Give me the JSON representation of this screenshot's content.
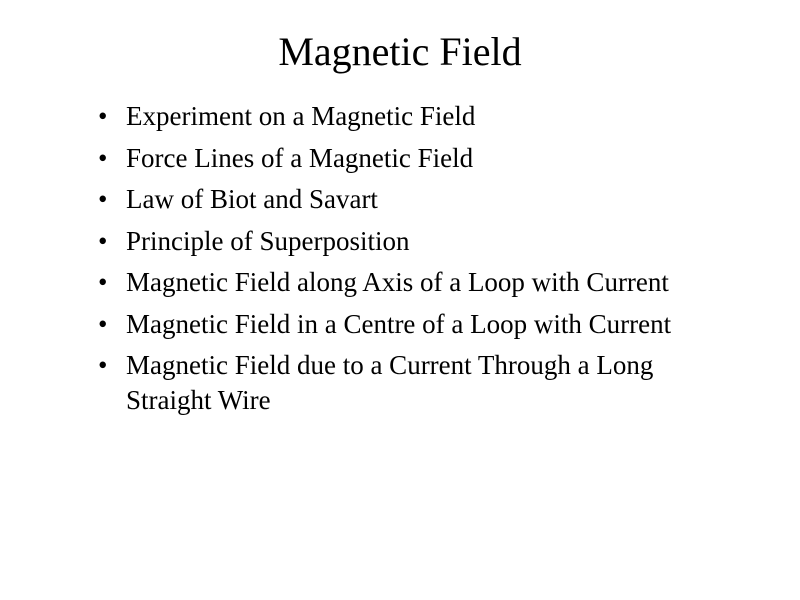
{
  "slide": {
    "title": "Magnetic Field",
    "bullets": [
      "Experiment on a Magnetic Field",
      "Force Lines of a Magnetic Field",
      "Law of Biot and Savart",
      "Principle of Superposition",
      "Magnetic Field along Axis of a Loop with Current",
      "Magnetic Field in a Centre of a Loop with Current",
      "Magnetic Field due to a Current Through a Long Straight Wire"
    ],
    "background_color": "#ffffff",
    "text_color": "#000000",
    "title_fontsize": 40,
    "bullet_fontsize": 27,
    "font_family": "Times New Roman"
  }
}
